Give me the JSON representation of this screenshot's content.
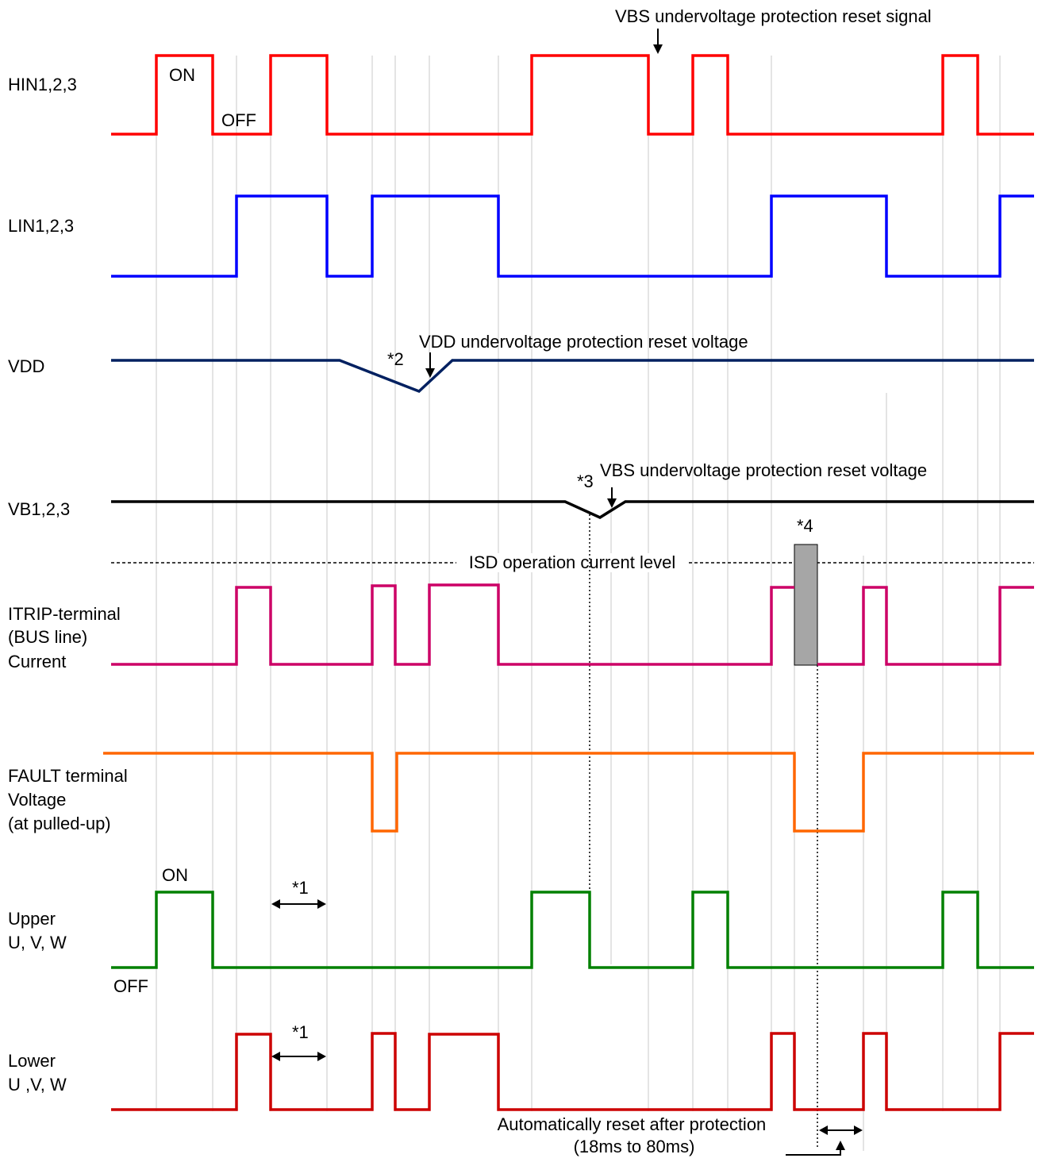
{
  "signals": [
    {
      "id": "hin",
      "label_lines": [
        "HIN1,2,3"
      ],
      "color": "#ff0000"
    },
    {
      "id": "lin",
      "label_lines": [
        "LIN1,2,3"
      ],
      "color": "#0000ff"
    },
    {
      "id": "vdd",
      "label_lines": [
        "VDD"
      ],
      "color": "#002060"
    },
    {
      "id": "vb",
      "label_lines": [
        "VB1,2,3"
      ],
      "color": "#000000"
    },
    {
      "id": "itrip",
      "label_lines": [
        "ITRIP-terminal",
        "(BUS line)",
        "Current"
      ],
      "color": "#cc0066"
    },
    {
      "id": "fault",
      "label_lines": [
        "FAULT terminal",
        "Voltage",
        "(at pulled-up)"
      ],
      "color": "#ff6600"
    },
    {
      "id": "upper",
      "label_lines": [
        "Upper",
        "U, V, W"
      ],
      "color": "#008000"
    },
    {
      "id": "lower",
      "label_lines": [
        "Lower",
        "U ,V, W"
      ],
      "color": "#cc0000"
    }
  ],
  "annotations": {
    "hin_on": "ON",
    "hin_off": "OFF",
    "vbs_reset_signal": "VBS undervoltage protection reset signal",
    "vdd_reset_voltage": "VDD undervoltage protection reset voltage",
    "note2": "*2",
    "note3": "*3",
    "vbs_reset_voltage": "VBS undervoltage protection reset voltage",
    "note4": "*4",
    "isd_level": "ISD operation current level",
    "upper_on": "ON",
    "upper_off": "OFF",
    "note1_upper": "*1",
    "note1_lower": "*1",
    "auto_reset_line1": "Automatically reset after protection",
    "auto_reset_line2": "(18ms to 80ms)"
  },
  "colors": {
    "guide": "#c8c8c8",
    "isd_block": "#a6a6a6"
  }
}
